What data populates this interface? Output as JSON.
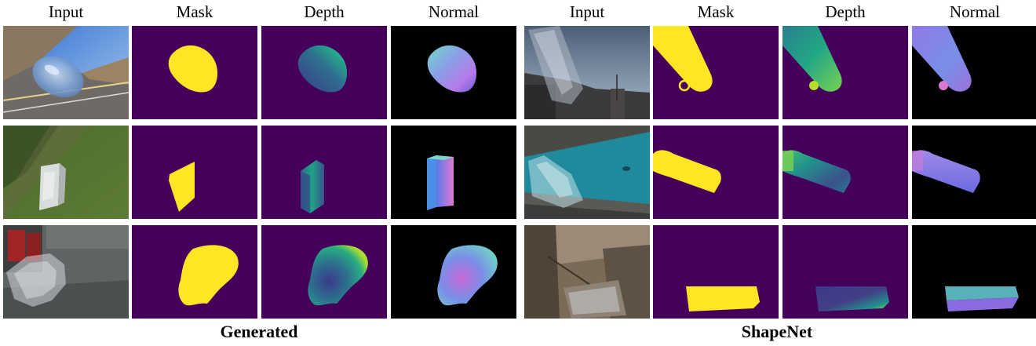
{
  "column_headers": [
    "Input",
    "Mask",
    "Depth",
    "Normal",
    "Input",
    "Mask",
    "Depth",
    "Normal"
  ],
  "captions": {
    "left": "Generated",
    "right": "ShapeNet"
  },
  "colors": {
    "mask_background": "#44005a",
    "mask_object": "#fde725",
    "normal_background": "#000000"
  }
}
